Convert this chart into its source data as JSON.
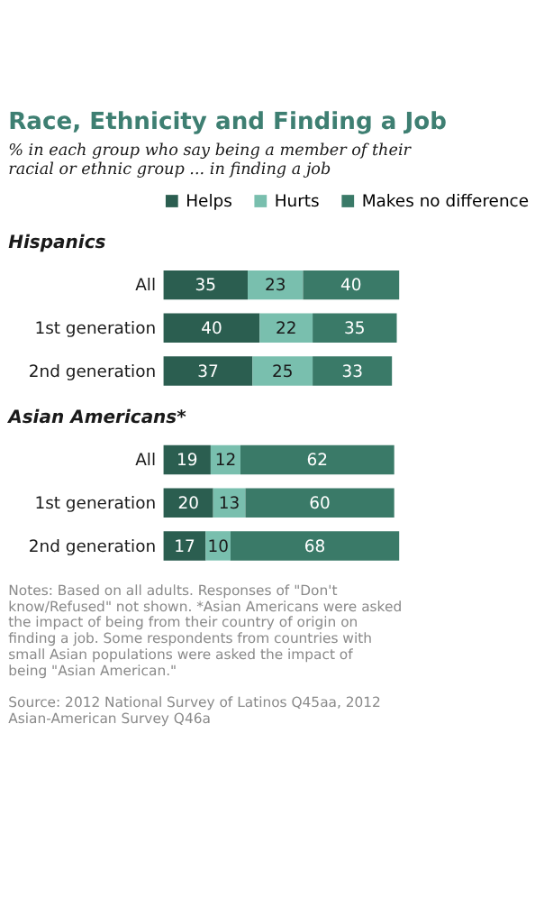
{
  "chart_data": [
    {
      "type": "bar",
      "orientation": "horizontal",
      "stacked": true,
      "title": "Race, Ethnicity and Finding a Job",
      "subtitle": "% in each group who say being a member of their racial or ethnic group ... in finding a job",
      "annotations": [
        "Hispanics"
      ],
      "categories": [
        "All",
        "1st generation",
        "2nd generation"
      ],
      "tick_labels": "y",
      "grid": false,
      "legend": "top",
      "data_labels": true,
      "series": [
        {
          "name": "Helps",
          "color": "#2b5e50",
          "values": [
            35,
            40,
            37
          ]
        },
        {
          "name": "Hurts",
          "color": "#79bfae",
          "values": [
            23,
            22,
            25
          ]
        },
        {
          "name": "Makes no difference",
          "color": "#3a7a68",
          "values": [
            40,
            35,
            33
          ]
        }
      ]
    },
    {
      "type": "bar",
      "orientation": "horizontal",
      "stacked": true,
      "title": "Asian Americans*",
      "annotations": [
        "Notes: Based on all adults. Responses of \"Don't know/Refused\" not shown. *Asian Americans were asked the impact of being from their country of origin on finding a job. Some respondents from countries with small Asian populations were asked the impact of being \"Asian American.\"",
        "Source: 2012 National Survey of Latinos Q45aa, 2012 Asian-American Survey Q46a"
      ],
      "categories": [
        "All",
        "1st generation",
        "2nd generation"
      ],
      "tick_labels": "y",
      "grid": false,
      "legend": false,
      "data_labels": true,
      "series": [
        {
          "name": "Helps",
          "color": "#2b5e50",
          "values": [
            19,
            20,
            17
          ]
        },
        {
          "name": "Hurts",
          "color": "#79bfae",
          "values": [
            12,
            13,
            10
          ]
        },
        {
          "name": "Makes no difference",
          "color": "#3a7a68",
          "values": [
            62,
            60,
            68
          ]
        }
      ]
    }
  ]
}
